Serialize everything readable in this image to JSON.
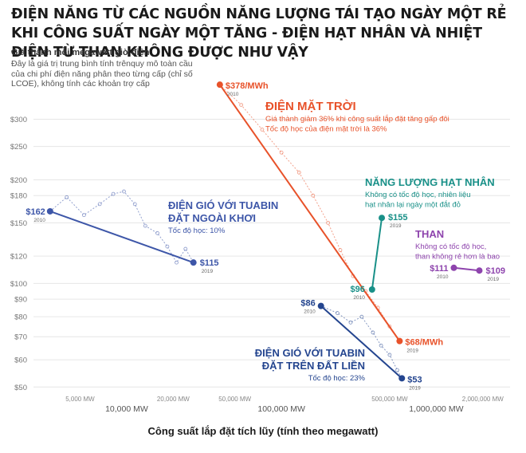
{
  "title": "ĐIỆN NĂNG TỪ CÁC NGUỒN NĂNG LƯỢNG TÁI TẠO NGÀY MỘT RẺ KHI CÔNG SUẤT NGÀY MỘT TĂNG - ĐIỆN HẠT NHÂN VÀ NHIỆT ĐIỆN TỪ THAN KHÔNG ĐƯỢC NHƯ VẬY",
  "ylabel": "Giá thành mỗi megawatt giờ điện",
  "note": "Đây là giá trị trung bình tính trênquy mô toàn cầu của chi phí điện năng phân theo từng cấp (chỉ số LCOE), không tính các khoản trợ cấp",
  "xlabel": "Công suất lắp đặt tích lũy (tính theo megawatt)",
  "colors": {
    "solar": "#e8522a",
    "offshore": "#3d56a8",
    "onshore": "#24458f",
    "nuclear": "#199088",
    "coal": "#8e44ad",
    "grid": "#e6e6e6",
    "tick": "#777777"
  },
  "chart_data": {
    "type": "line",
    "x_scale": "log",
    "y_scale": "log",
    "xlim": [
      2500,
      3000000
    ],
    "ylim": [
      45,
      430
    ],
    "grid": true,
    "y_ticks": [
      50,
      60,
      70,
      80,
      90,
      100,
      120,
      150,
      180,
      200,
      250,
      300
    ],
    "y_tick_labels": [
      "$50",
      "$60",
      "$70",
      "$80",
      "$90",
      "$100",
      "$120",
      "$150",
      "$180",
      "$200",
      "$250",
      "$300"
    ],
    "x_major_ticks": [
      10000,
      100000,
      1000000
    ],
    "x_major_labels": [
      "10,000 MW",
      "100,000 MW",
      "1,000,000 MW"
    ],
    "x_minor_ticks": [
      5000,
      20000,
      50000,
      200000,
      500000,
      2000000
    ],
    "x_minor_labels": [
      "5,000 MW",
      "20,000 MW",
      "50,000 MW",
      "",
      "500,000 MW",
      "2,000,000 MW"
    ],
    "series": [
      {
        "key": "solar",
        "name": "ĐIỆN MẶT TRỜI",
        "desc": [
          "Giá thành giảm 36% khi công suất lắp đặt tăng gấp đôi",
          "Tốc độ học của điện mặt trời là 36%"
        ],
        "start": {
          "x": 40000,
          "y": 378,
          "label": "$378/MWh",
          "year": "2010"
        },
        "end": {
          "x": 580000,
          "y": 68,
          "label": "$68/MWh",
          "year": "2019"
        },
        "detail": [
          [
            40000,
            378
          ],
          [
            55000,
            330
          ],
          [
            75000,
            280
          ],
          [
            100000,
            240
          ],
          [
            130000,
            210
          ],
          [
            160000,
            180
          ],
          [
            200000,
            150
          ],
          [
            240000,
            125
          ],
          [
            290000,
            105
          ],
          [
            350000,
            95
          ],
          [
            420000,
            85
          ],
          [
            500000,
            75
          ],
          [
            580000,
            68
          ]
        ]
      },
      {
        "key": "offshore",
        "name": "ĐIỆN GIÓ VỚI TUABIN ĐẶT NGOÀI KHƠI",
        "desc": [
          "Tốc độ học: 10%"
        ],
        "start": {
          "x": 3200,
          "y": 162,
          "label": "$162",
          "year": "2010"
        },
        "end": {
          "x": 27000,
          "y": 115,
          "label": "$115",
          "year": "2019"
        },
        "detail": [
          [
            3200,
            162
          ],
          [
            4100,
            178
          ],
          [
            5300,
            158
          ],
          [
            6700,
            170
          ],
          [
            8200,
            182
          ],
          [
            9600,
            185
          ],
          [
            11300,
            170
          ],
          [
            13200,
            147
          ],
          [
            15800,
            140
          ],
          [
            18300,
            128
          ],
          [
            21000,
            115
          ],
          [
            24000,
            126
          ],
          [
            27000,
            115
          ]
        ]
      },
      {
        "key": "onshore",
        "name": "ĐIỆN GIÓ VỚI TUABIN ĐẶT TRÊN ĐẤT LIỀN",
        "desc": [
          "Tốc độ học: 23%"
        ],
        "start": {
          "x": 180000,
          "y": 86,
          "label": "$86",
          "year": "2010"
        },
        "end": {
          "x": 600000,
          "y": 53,
          "label": "$53",
          "year": "2019"
        },
        "detail": [
          [
            180000,
            86
          ],
          [
            230000,
            82
          ],
          [
            280000,
            77
          ],
          [
            330000,
            80
          ],
          [
            390000,
            72
          ],
          [
            440000,
            66
          ],
          [
            500000,
            62
          ],
          [
            560000,
            56
          ],
          [
            600000,
            53
          ]
        ]
      },
      {
        "key": "nuclear",
        "name": "NĂNG LƯỢNG HẠT NHÂN",
        "desc": [
          "Không có tốc độ học, nhiên liệu",
          "hạt nhân lại ngày một đắt đỏ"
        ],
        "start": {
          "x": 385000,
          "y": 96,
          "label": "$96",
          "year": "2010"
        },
        "end": {
          "x": 445000,
          "y": 155,
          "label": "$155",
          "year": "2019"
        }
      },
      {
        "key": "coal",
        "name": "THAN",
        "desc": [
          "Không có tốc độ học,",
          "than không rẻ hơn là bao"
        ],
        "start": {
          "x": 1300000,
          "y": 111,
          "label": "$111",
          "year": "2010"
        },
        "end": {
          "x": 1900000,
          "y": 109,
          "label": "$109",
          "year": "2019"
        }
      }
    ]
  }
}
